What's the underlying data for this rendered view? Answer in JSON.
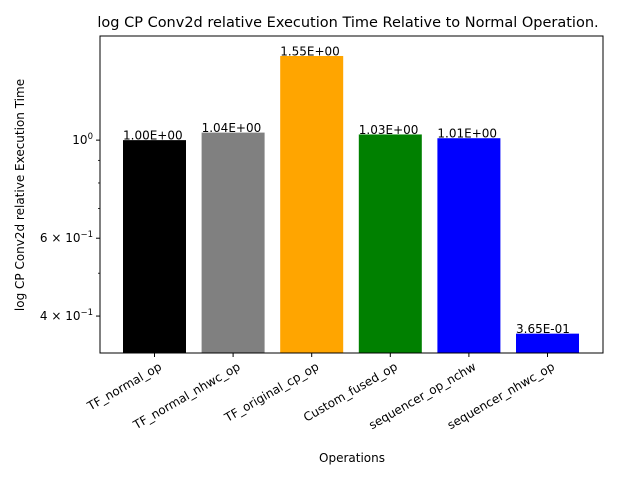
{
  "chart_data": {
    "type": "bar",
    "title": "log CP Conv2d relative Execution Time Relative to Normal Operation.",
    "xlabel": "Operations",
    "ylabel": "log CP Conv2d relative Execution Time",
    "yscale": "log",
    "ylim": [
      0.33,
      1.72
    ],
    "categories": [
      "TF_normal_op",
      "TF_normal_nhwc_op",
      "TF_original_cp_op",
      "Custom_fused_op",
      "sequencer_op_nchw",
      "sequencer_nhwc_op"
    ],
    "values": [
      1.0,
      1.04,
      1.55,
      1.03,
      1.01,
      0.365
    ],
    "data_labels": [
      "1.00E+00",
      "1.04E+00",
      "1.55E+00",
      "1.03E+00",
      "1.01E+00",
      "3.65E-01"
    ],
    "colors": [
      "#000000",
      "#808080",
      "#ffa500",
      "#008000",
      "#0000ff",
      "#0000ff"
    ],
    "y_major_ticks": [
      {
        "value": 1.0,
        "mantissa": "10",
        "exponent": "0",
        "prefix": ""
      },
      {
        "value": 0.6,
        "mantissa": "10",
        "exponent": "−1",
        "prefix": "6 × "
      },
      {
        "value": 0.4,
        "mantissa": "10",
        "exponent": "−1",
        "prefix": "4 × "
      }
    ],
    "y_minor_ticks": [
      0.5,
      0.7,
      0.8,
      0.9
    ],
    "grid": false,
    "legend": "none"
  }
}
